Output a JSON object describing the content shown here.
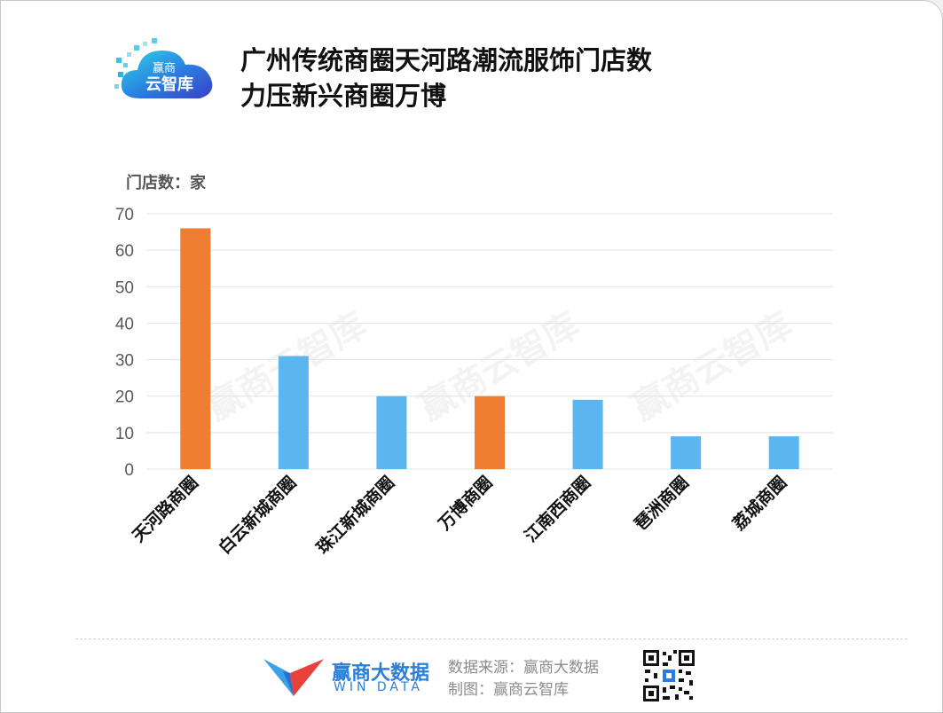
{
  "header": {
    "logo_text_1": "赢商",
    "logo_text_2": "云智库",
    "title_line1": "广州传统商圈天河路潮流服饰门店数",
    "title_line2": "力压新兴商圈万博"
  },
  "chart_data": {
    "type": "bar",
    "ylabel": "门店数：家",
    "ylim": [
      0,
      70
    ],
    "yticks": [
      0,
      10,
      20,
      30,
      40,
      50,
      60,
      70
    ],
    "categories": [
      "天河路商圈",
      "白云新城商圈",
      "珠江新城商圈",
      "万博商圈",
      "江南西商圈",
      "琶洲商圈",
      "荔城商圈"
    ],
    "values": [
      66,
      31,
      20,
      20,
      19,
      9,
      9
    ],
    "highlight": [
      true,
      false,
      false,
      true,
      false,
      false,
      false
    ],
    "colors": {
      "highlight": "#ef7d32",
      "normal": "#5bb5ef",
      "grid": "#e2e2e2",
      "axis_text": "#595959"
    },
    "grid": true,
    "legend": "none"
  },
  "watermark": "赢商云智库",
  "footer": {
    "brand_cn": "赢商大数据",
    "brand_en": "WIN DATA",
    "source_line1": "数据来源：赢商大数据",
    "source_line2": "制图：赢商云智库"
  }
}
